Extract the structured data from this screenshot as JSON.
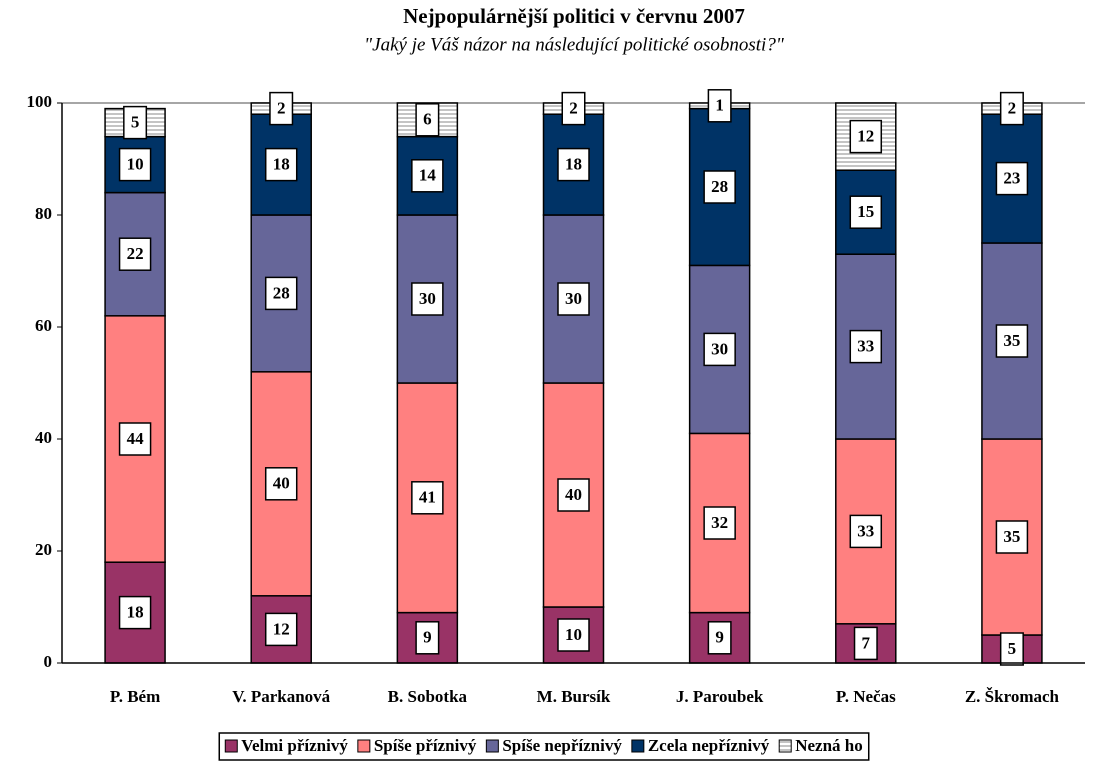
{
  "chart_data": {
    "type": "stacked_bar",
    "title": "Nejpopulárnější politici v červnu 2007",
    "subtitle": "\"Jaký je Váš názor na následující politické osobnosti?\"",
    "categories": [
      "P. Bém",
      "V. Parkanová",
      "B. Sobotka",
      "M. Bursík",
      "J. Paroubek",
      "P. Nečas",
      "Z. Škromach"
    ],
    "series": [
      {
        "name": "Velmi příznivý",
        "color": "#993366",
        "values": [
          18,
          12,
          9,
          10,
          9,
          7,
          5
        ]
      },
      {
        "name": "Spíše příznivý",
        "color": "#ff8080",
        "values": [
          44,
          40,
          41,
          40,
          32,
          33,
          35
        ]
      },
      {
        "name": "Spíše nepříznivý",
        "color": "#666699",
        "values": [
          22,
          28,
          30,
          30,
          30,
          33,
          35
        ]
      },
      {
        "name": "Zcela nepříznivý",
        "color": "#003366",
        "values": [
          10,
          18,
          14,
          18,
          28,
          15,
          23
        ]
      },
      {
        "name": "Nezná ho",
        "color": "#ffffff",
        "hatch": true,
        "values": [
          5,
          2,
          6,
          2,
          1,
          12,
          2
        ]
      }
    ],
    "ylim": [
      0,
      100
    ],
    "yticks": [
      0,
      20,
      40,
      60,
      80,
      100
    ],
    "legend": "bottom"
  }
}
